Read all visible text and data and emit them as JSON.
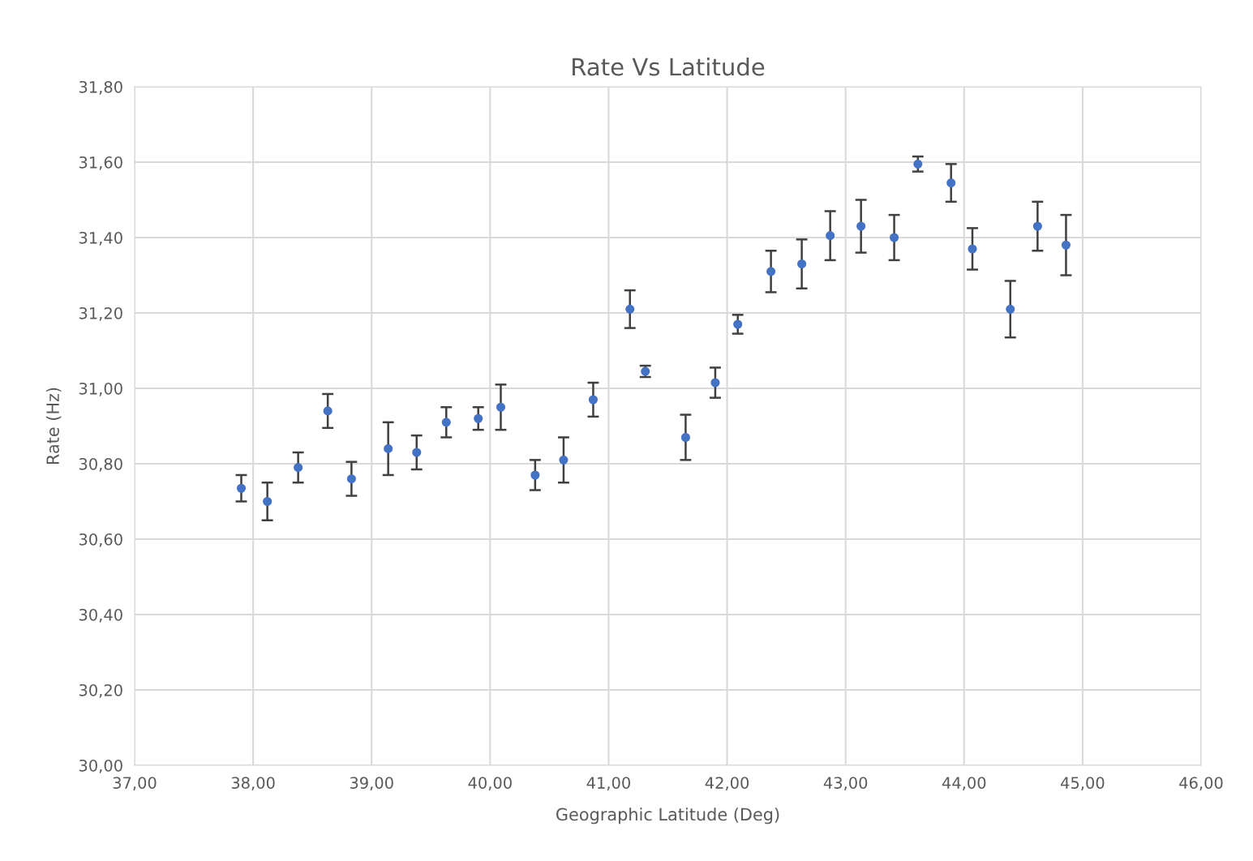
{
  "chart_data": {
    "type": "scatter",
    "title": "Rate Vs Latitude",
    "xlabel": "Geographic Latitude (Deg)",
    "ylabel": "Rate (Hz)",
    "x": [
      37.9,
      38.12,
      38.38,
      38.63,
      38.83,
      39.14,
      39.38,
      39.63,
      39.9,
      40.09,
      40.38,
      40.62,
      40.87,
      41.18,
      41.31,
      41.65,
      41.9,
      42.09,
      42.37,
      42.63,
      42.87,
      43.13,
      43.41,
      43.61,
      43.89,
      44.07,
      44.39,
      44.62,
      44.86
    ],
    "series": [
      {
        "color": "#4472c4",
        "values": [
          30.735,
          30.7,
          30.79,
          30.94,
          30.76,
          30.84,
          30.83,
          30.91,
          30.92,
          30.95,
          30.77,
          30.81,
          30.97,
          31.21,
          31.045,
          30.87,
          31.015,
          31.17,
          31.31,
          31.33,
          31.405,
          31.43,
          31.4,
          31.595,
          31.545,
          31.37,
          31.21,
          31.43,
          31.38
        ],
        "errors": [
          0.035,
          0.05,
          0.04,
          0.045,
          0.045,
          0.07,
          0.045,
          0.04,
          0.03,
          0.06,
          0.04,
          0.06,
          0.045,
          0.05,
          0.015,
          0.06,
          0.04,
          0.025,
          0.055,
          0.065,
          0.065,
          0.07,
          0.06,
          0.02,
          0.05,
          0.055,
          0.075,
          0.065,
          0.08
        ]
      }
    ],
    "marker": "circle",
    "xlim": [
      37,
      46
    ],
    "xticks": [
      {
        "value": 37,
        "label": "37,00"
      },
      {
        "value": 38,
        "label": "38,00"
      },
      {
        "value": 39,
        "label": "39,00"
      },
      {
        "value": 40,
        "label": "40,00"
      },
      {
        "value": 41,
        "label": "41,00"
      },
      {
        "value": 42,
        "label": "42,00"
      },
      {
        "value": 43,
        "label": "43,00"
      },
      {
        "value": 44,
        "label": "44,00"
      },
      {
        "value": 45,
        "label": "45,00"
      },
      {
        "value": 46,
        "label": "46,00"
      }
    ],
    "ylim": [
      30.0,
      31.8
    ],
    "yticks": [
      {
        "value": 30.0,
        "label": "30,00"
      },
      {
        "value": 30.2,
        "label": "30,20"
      },
      {
        "value": 30.4,
        "label": "30,40"
      },
      {
        "value": 30.6,
        "label": "30,60"
      },
      {
        "value": 30.8,
        "label": "30,80"
      },
      {
        "value": 31.0,
        "label": "31,00"
      },
      {
        "value": 31.2,
        "label": "31,20"
      },
      {
        "value": 31.4,
        "label": "31,40"
      },
      {
        "value": 31.6,
        "label": "31,60"
      },
      {
        "value": 31.8,
        "label": "31,80"
      }
    ],
    "grid": true
  }
}
